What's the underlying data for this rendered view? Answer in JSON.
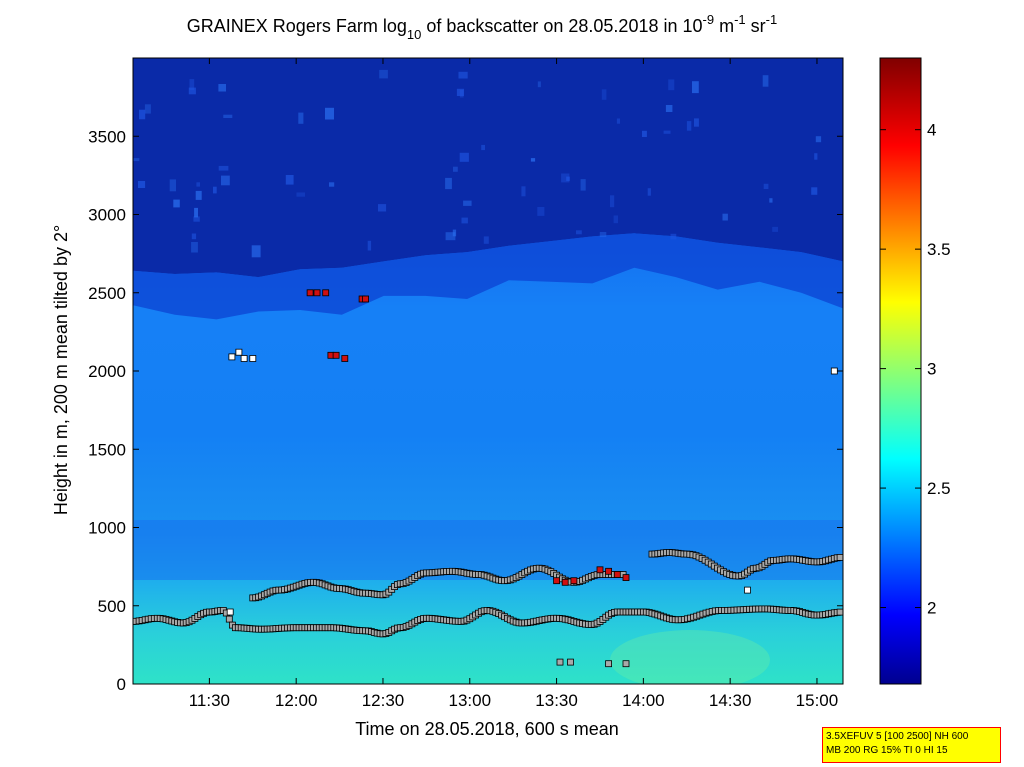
{
  "chart_data": {
    "type": "heatmap",
    "title": {
      "prefix": "GRAINEX Rogers Farm log",
      "sub": "10",
      "middle": " of backscatter on 28.05.2018 in 10",
      "sup1": "-9",
      "unit1": " m",
      "sup2": "-1",
      "unit2": " sr",
      "sup3": "-1"
    },
    "xlabel": "Time on 28.05.2018, 600 s mean",
    "ylabel": "Height in m, 200 m mean tilted by 2°",
    "xlim_hours": [
      11.06,
      15.15
    ],
    "x_ticks": [
      "11:30",
      "12:00",
      "12:30",
      "13:00",
      "13:30",
      "14:00",
      "14:30",
      "15:00"
    ],
    "ylim": [
      0,
      4000
    ],
    "y_ticks": [
      0,
      500,
      1000,
      1500,
      2000,
      2500,
      3000,
      3500
    ],
    "colorbar": {
      "range": [
        1.68,
        4.3
      ],
      "ticks": [
        "2",
        "2.5",
        "3",
        "3.5",
        "4"
      ],
      "colormap": "jet"
    },
    "background_layers": {
      "aerosol_top_height": [
        2640,
        2620,
        2630,
        2600,
        2650,
        2660,
        2700,
        2740,
        2760,
        2800,
        2830,
        2860,
        2880,
        2860,
        2820,
        2790,
        2760,
        2700
      ],
      "near_surface_value": 2.75,
      "boundary_layer_value": 2.35,
      "free_troposphere_value": 1.85
    },
    "series": [
      {
        "marker": "grey-square",
        "x_hours": [
          11.06,
          11.2,
          11.35,
          11.5,
          11.58,
          11.65,
          11.8,
          12.0,
          12.2,
          12.4,
          12.5,
          12.6,
          12.75,
          12.95,
          13.1,
          13.3,
          13.5,
          13.7,
          13.85,
          14.0,
          14.2,
          14.45,
          14.7,
          14.85,
          15.0,
          15.15
        ],
        "y": [
          400,
          420,
          390,
          460,
          470,
          360,
          350,
          360,
          360,
          340,
          320,
          360,
          420,
          400,
          470,
          390,
          420,
          380,
          460,
          460,
          410,
          470,
          480,
          470,
          440,
          460
        ]
      },
      {
        "marker": "grey-square",
        "x_hours": [
          11.75,
          11.9,
          12.1,
          12.25,
          12.4,
          12.5,
          12.6,
          12.75,
          12.9,
          13.05,
          13.2,
          13.4,
          13.6,
          13.75,
          13.9
        ],
        "y": [
          550,
          600,
          650,
          610,
          580,
          570,
          640,
          710,
          720,
          700,
          660,
          740,
          650,
          700,
          700
        ]
      },
      {
        "marker": "grey-square",
        "x_hours": [
          14.05,
          14.15,
          14.25,
          14.55,
          14.65,
          14.75,
          14.85,
          15.0,
          15.15
        ],
        "y": [
          830,
          840,
          830,
          690,
          740,
          790,
          800,
          780,
          810
        ]
      },
      {
        "marker": "grey-square",
        "x_hours": [
          13.52,
          13.58,
          13.8,
          13.9
        ],
        "y": [
          140,
          140,
          130,
          130
        ]
      },
      {
        "marker": "red-square",
        "x_hours": [
          12.08,
          12.12,
          12.17,
          12.2,
          12.23,
          12.28,
          12.38,
          12.4,
          13.5,
          13.55,
          13.6,
          13.75,
          13.8,
          13.85,
          13.9
        ],
        "y": [
          2500,
          2500,
          2500,
          2100,
          2100,
          2080,
          2460,
          2460,
          660,
          650,
          660,
          730,
          720,
          700,
          680
        ]
      },
      {
        "marker": "white-square",
        "x_hours": [
          11.63,
          11.67,
          11.7,
          11.75,
          11.62,
          14.6,
          15.1
        ],
        "y": [
          2090,
          2120,
          2080,
          2080,
          460,
          600,
          2000
        ]
      }
    ]
  },
  "info_box": {
    "line1": "3.5XEFUV 5 [100 2500] NH 600",
    "line2": "MB 200 RG 15% TI 0 HI 15"
  }
}
